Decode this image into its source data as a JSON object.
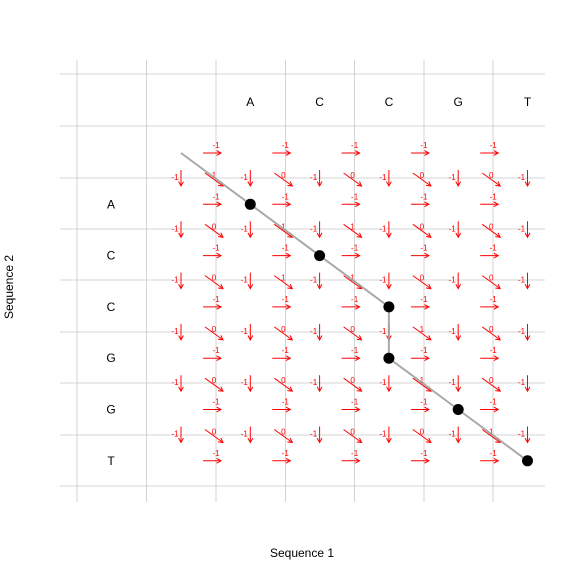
{
  "axes": {
    "xlabel": "Sequence 1",
    "ylabel": "Sequence 2"
  },
  "sequence1": [
    "A",
    "C",
    "C",
    "G",
    "T"
  ],
  "sequence2": [
    "A",
    "C",
    "C",
    "G",
    "G",
    "T"
  ],
  "colors": {
    "grid": "#c8c8c8",
    "arrow": "#ff0000",
    "path": "#a0a0a0",
    "node": "#000000"
  },
  "arrows": {
    "horizontal_score": "-1",
    "vertical_score": "-1",
    "diagonal_scores": [
      [
        "1",
        "0",
        "0",
        "0",
        "0"
      ],
      [
        "0",
        "1",
        "1",
        "0",
        "0"
      ],
      [
        "0",
        "1",
        "1",
        "0",
        "0"
      ],
      [
        "0",
        "0",
        "0",
        "1",
        "0"
      ],
      [
        "0",
        "0",
        "0",
        "1",
        "0"
      ],
      [
        "0",
        "0",
        "0",
        "0",
        "1"
      ]
    ]
  },
  "alignment_path": [
    [
      0,
      0
    ],
    [
      1,
      1
    ],
    [
      2,
      2
    ],
    [
      3,
      3
    ],
    [
      3,
      4
    ],
    [
      4,
      5
    ],
    [
      5,
      6
    ]
  ]
}
